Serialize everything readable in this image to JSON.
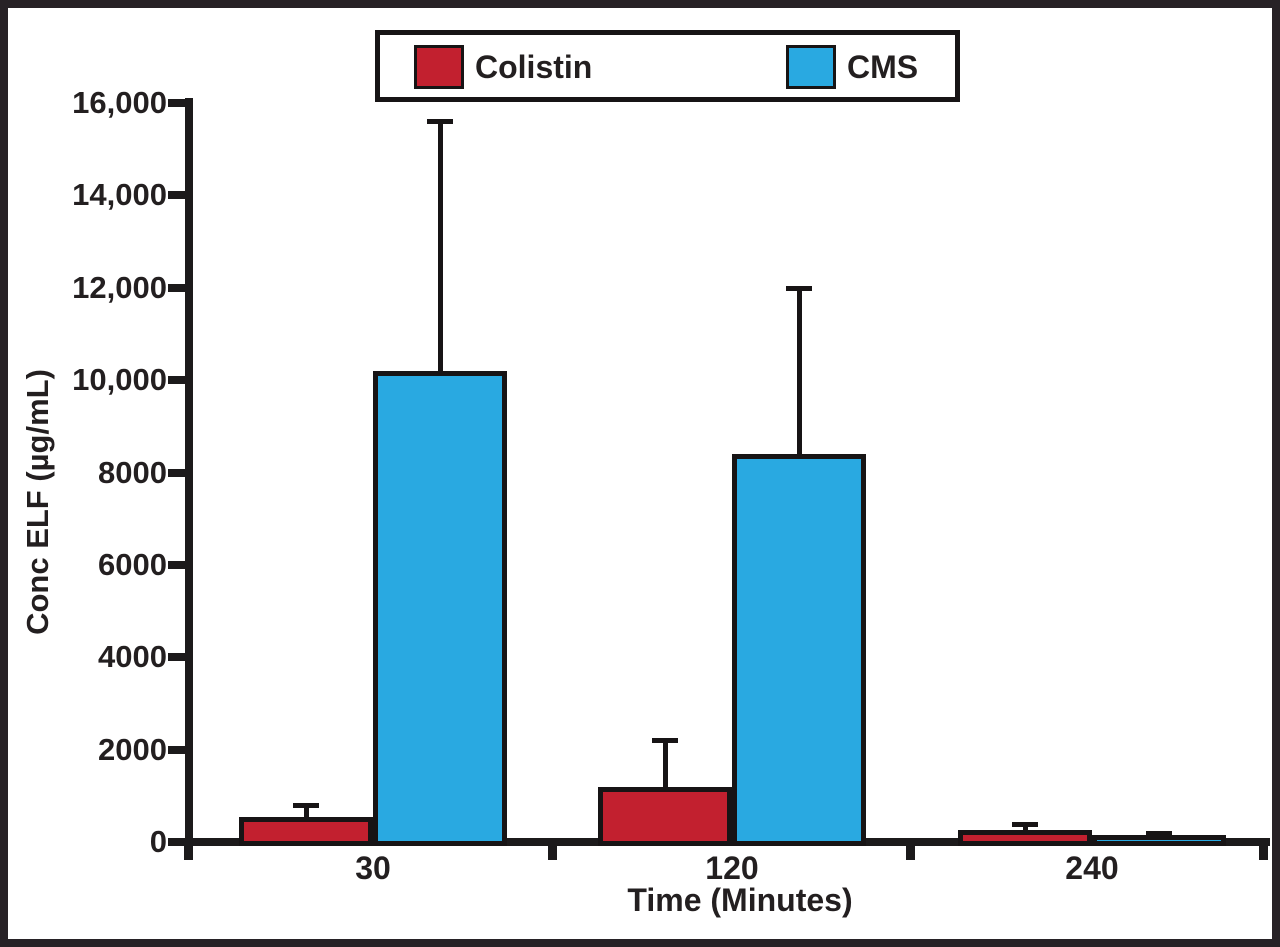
{
  "figure": {
    "background": "#ffffff",
    "frame_color": "#272226",
    "text_color": "#231F20"
  },
  "legend": {
    "items": [
      {
        "label": "Colistin",
        "color": "#C2202F"
      },
      {
        "label": "CMS",
        "color": "#29A9E1"
      }
    ]
  },
  "axes": {
    "y_label": "Conc ELF (µg/mL)",
    "x_label": "Time (Minutes)"
  },
  "chart_data": {
    "type": "bar",
    "title": "",
    "xlabel": "Time (Minutes)",
    "ylabel": "Conc ELF (µg/mL)",
    "categories": [
      "30",
      "120",
      "240"
    ],
    "series": [
      {
        "name": "Colistin",
        "color": "#C2202F",
        "values": [
          550,
          1200,
          250
        ],
        "errors_plus": [
          250,
          1000,
          150
        ]
      },
      {
        "name": "CMS",
        "color": "#29A9E1",
        "values": [
          10200,
          8400,
          100
        ],
        "errors_plus": [
          5400,
          3600,
          100
        ]
      }
    ],
    "error_bars": "upper whiskers only",
    "ylim": [
      0,
      16000
    ],
    "ytick_values": [
      0,
      2000,
      4000,
      6000,
      8000,
      10000,
      12000,
      14000,
      16000
    ],
    "ytick_labels": [
      "0",
      "2000",
      "4000",
      "6000",
      "8000",
      "10,000",
      "12,000",
      "14,000",
      "16,000"
    ],
    "grid": false,
    "legend_position": "top-center"
  }
}
